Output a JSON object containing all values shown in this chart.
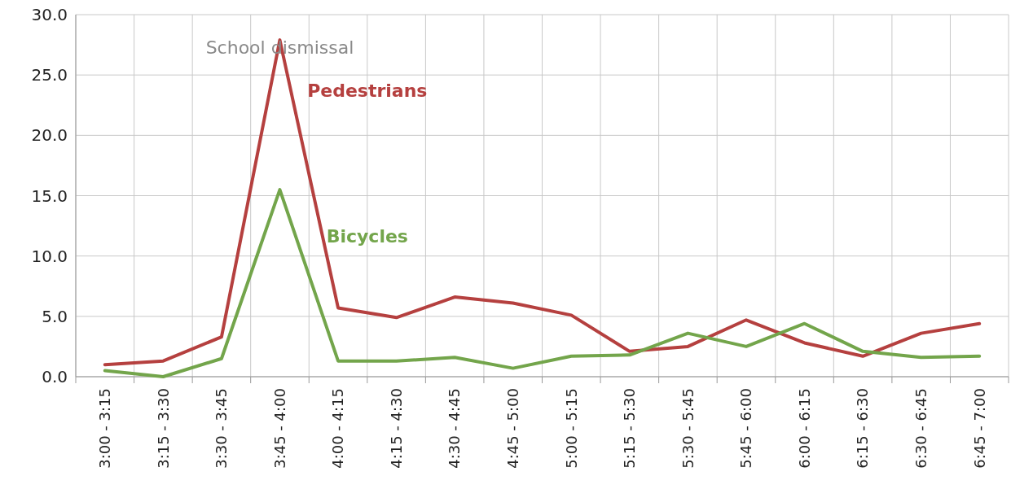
{
  "chart_data": {
    "type": "line",
    "categories": [
      "3:00 - 3:15",
      "3:15 - 3:30",
      "3:30 - 3:45",
      "3:45 - 4:00",
      "4:00 - 4:15",
      "4:15 - 4:30",
      "4:30 - 4:45",
      "4:45 - 5:00",
      "5:00 - 5:15",
      "5:15 - 5:30",
      "5:30 - 5:45",
      "5:45 - 6:00",
      "6:00 - 6:15",
      "6:15 - 6:30",
      "6:30 - 6:45",
      "6:45 - 7:00"
    ],
    "series": [
      {
        "name": "Pedestrians",
        "color": "#b5403f",
        "values": [
          1.0,
          1.3,
          3.3,
          27.9,
          5.7,
          4.9,
          6.6,
          6.1,
          5.1,
          2.1,
          2.5,
          4.7,
          2.8,
          1.7,
          3.6,
          4.4
        ]
      },
      {
        "name": "Bicycles",
        "color": "#73a54b",
        "values": [
          0.5,
          0.0,
          1.5,
          15.5,
          1.3,
          1.3,
          1.6,
          0.7,
          1.7,
          1.8,
          3.6,
          2.5,
          4.4,
          2.1,
          1.6,
          1.7
        ]
      }
    ],
    "ylim": [
      0,
      30
    ],
    "yticks": [
      {
        "value": 0,
        "label": "0.0"
      },
      {
        "value": 5,
        "label": "5.0"
      },
      {
        "value": 10,
        "label": "10.0"
      },
      {
        "value": 15,
        "label": "15.0"
      },
      {
        "value": 20,
        "label": "20.0"
      },
      {
        "value": 25,
        "label": "25.0"
      },
      {
        "value": 30,
        "label": "30.0"
      }
    ],
    "grid": true,
    "marker": "none",
    "annotations": [
      {
        "text": "School dismissal",
        "x": "3:45 - 4:00",
        "y": 27.3
      }
    ]
  }
}
